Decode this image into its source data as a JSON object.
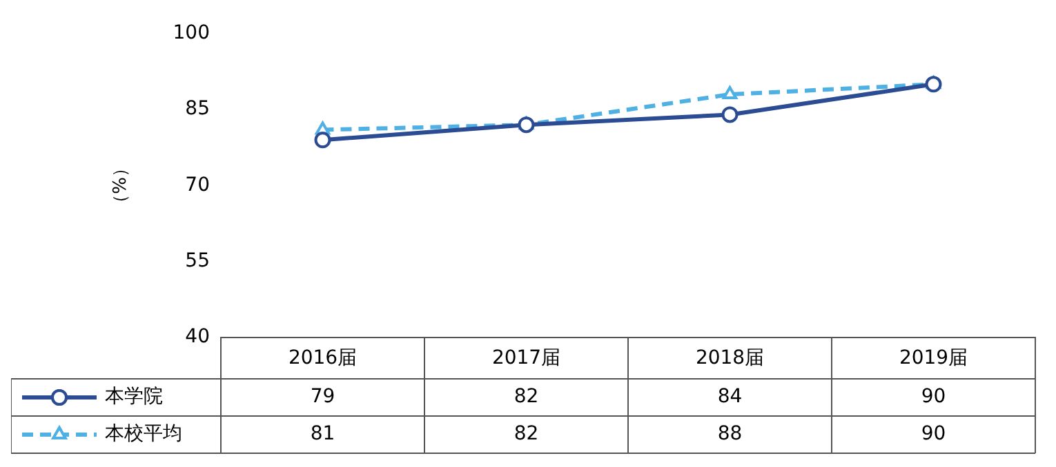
{
  "chart_data": {
    "type": "line",
    "ylabel": "（%）",
    "categories": [
      "2016届",
      "2017届",
      "2018届",
      "2019届"
    ],
    "series": [
      {
        "name": "本学院",
        "color": "#2b4c93",
        "values": [
          79,
          82,
          84,
          90
        ],
        "marker": "circle",
        "line_style": "solid"
      },
      {
        "name": "本校平均",
        "color": "#4fb0e4",
        "values": [
          81,
          82,
          88,
          90
        ],
        "marker": "triangle",
        "line_style": "dashed"
      }
    ],
    "ylim": [
      40,
      100
    ],
    "yticks": [
      40,
      55,
      70,
      85,
      100
    ],
    "grid": false,
    "legend": "bottom left",
    "data_labels": true
  }
}
